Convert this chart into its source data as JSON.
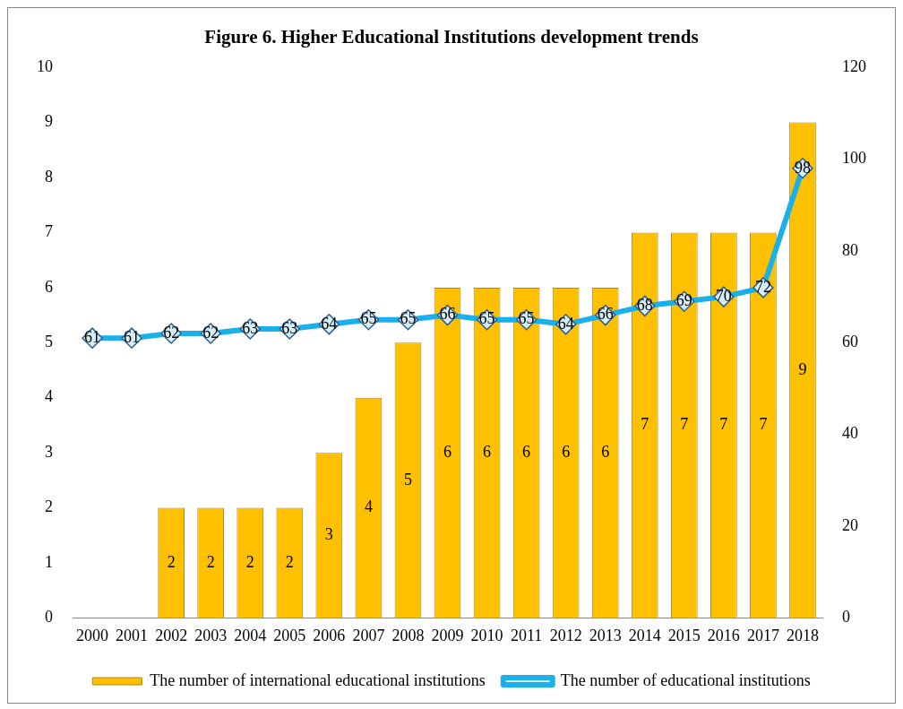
{
  "chart_data": {
    "type": "bar",
    "title": "Figure 6. Higher Educational Institutions development trends",
    "categories": [
      "2000",
      "2001",
      "2002",
      "2003",
      "2004",
      "2005",
      "2006",
      "2007",
      "2008",
      "2009",
      "2010",
      "2011",
      "2012",
      "2013",
      "2014",
      "2015",
      "2016",
      "2017",
      "2018"
    ],
    "series": [
      {
        "name": "The number of international educational institutions",
        "color": "#ffc000",
        "values": [
          null,
          null,
          2,
          2,
          2,
          2,
          3,
          4,
          5,
          6,
          6,
          6,
          6,
          6,
          7,
          7,
          7,
          7,
          9
        ]
      },
      {
        "name": "The number of educational institutions",
        "type": "line",
        "axis": "y2",
        "color": "#1ab0ea",
        "marker": "diamond",
        "values": [
          61,
          61,
          62,
          62,
          63,
          63,
          64,
          65,
          65,
          66,
          65,
          65,
          64,
          66,
          68,
          69,
          70,
          72,
          98
        ]
      }
    ],
    "ylim": [
      0,
      10
    ],
    "yticks": [
      0,
      1,
      2,
      3,
      4,
      5,
      6,
      7,
      8,
      9,
      10
    ],
    "y2lim": [
      0,
      120
    ],
    "y2ticks": [
      0,
      20,
      40,
      60,
      80,
      100,
      120
    ],
    "grid": false,
    "legend": "bottom",
    "data_labels": true
  }
}
